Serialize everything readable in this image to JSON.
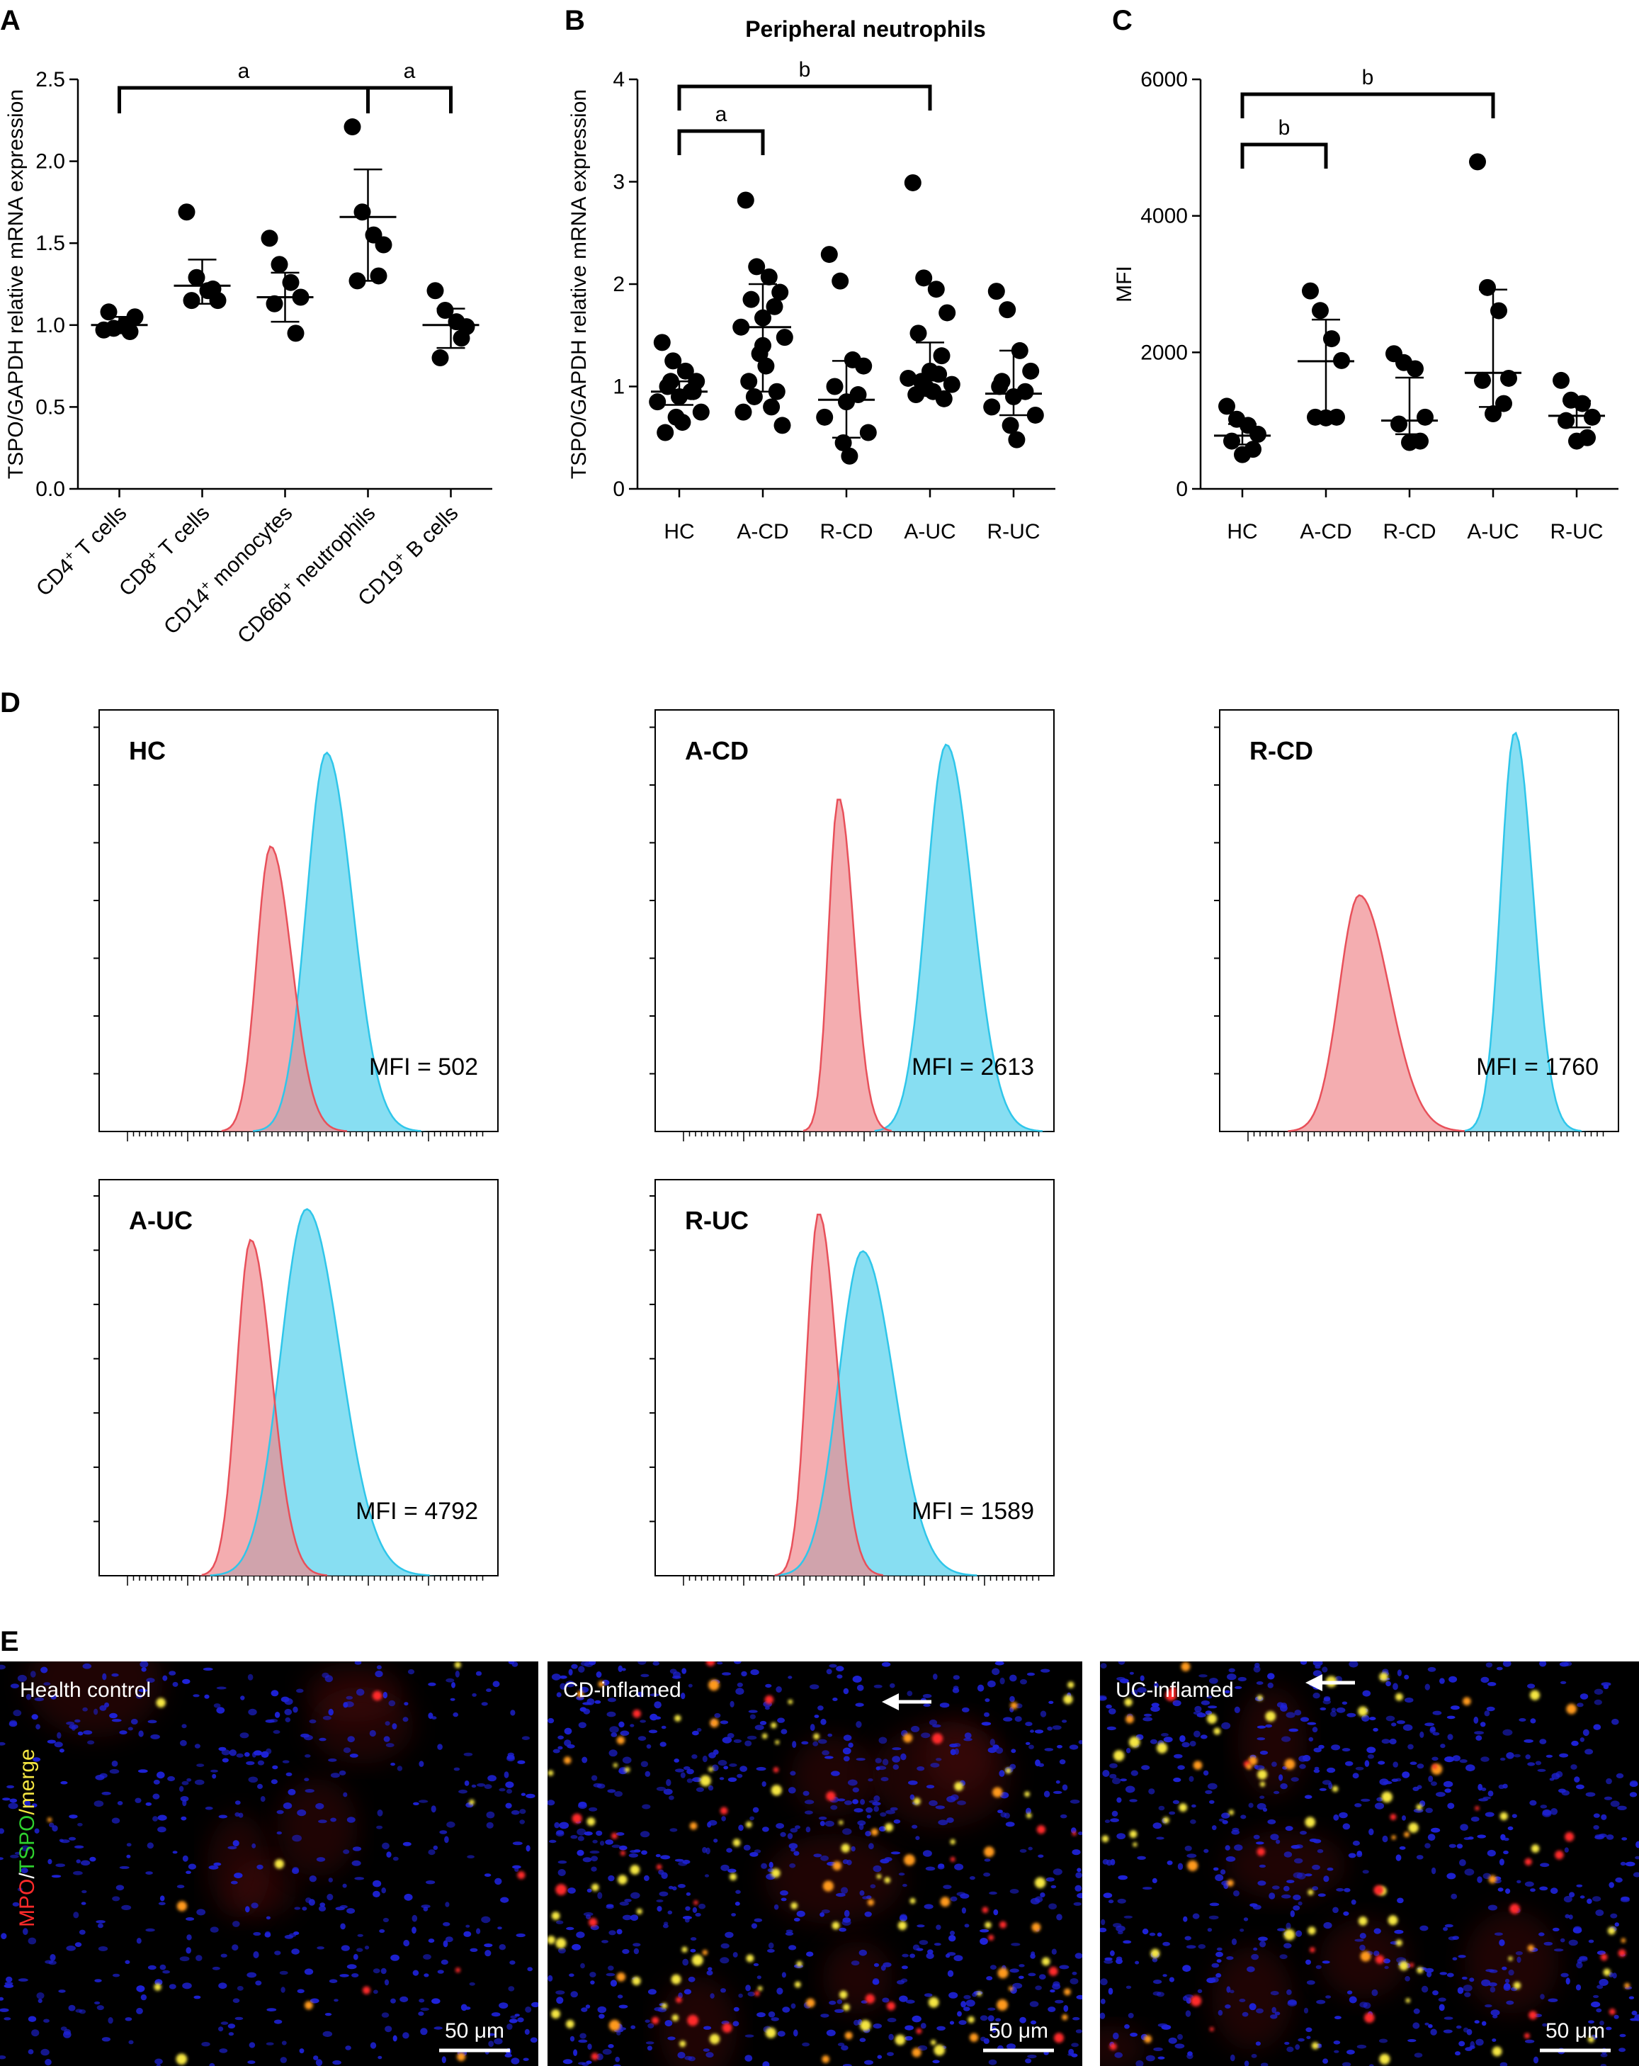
{
  "panels": {
    "A": "A",
    "B": "B",
    "C": "C",
    "D": "D",
    "E": "E"
  },
  "chart_data": [
    {
      "type": "scatter",
      "panel": "A",
      "title": "",
      "ylabel": "TSPO/GAPDH relative mRNA expression",
      "ylim": [
        0,
        2.5
      ],
      "yticks": [
        "0.0",
        "0.5",
        "1.0",
        "1.5",
        "2.0",
        "2.5"
      ],
      "categories": [
        "CD4⁺ T cells",
        "CD8⁺ T cells",
        "CD14⁺ monocytes",
        "CD66b⁺ neutrophils",
        "CD19⁺ B cells"
      ],
      "points": [
        [
          0.97,
          0.98,
          1.0,
          1.05,
          1.08,
          0.96
        ],
        [
          1.69,
          1.29,
          1.21,
          1.15,
          1.15,
          1.22
        ],
        [
          1.53,
          1.37,
          1.26,
          1.17,
          1.13,
          0.95
        ],
        [
          2.21,
          1.69,
          1.55,
          1.49,
          1.27,
          1.3
        ],
        [
          1.21,
          1.09,
          1.02,
          0.99,
          0.8,
          0.92
        ]
      ],
      "mean": [
        1.0,
        1.24,
        1.17,
        1.66,
        1.0
      ],
      "err_low": [
        0.95,
        1.13,
        1.02,
        1.27,
        0.86
      ],
      "err_high": [
        1.05,
        1.4,
        1.32,
        1.95,
        1.1
      ],
      "brackets": [
        {
          "from": 0,
          "to": 3,
          "label": "a"
        },
        {
          "from": 3,
          "to": 4,
          "label": "a"
        }
      ]
    },
    {
      "type": "scatter",
      "panel": "B",
      "title": "Peripheral neutrophils",
      "ylabel": "TSPO/GAPDH relative mRNA expression",
      "ylim": [
        0,
        4
      ],
      "yticks": [
        "0",
        "1",
        "2",
        "3",
        "4"
      ],
      "categories": [
        "HC",
        "A-CD",
        "R-CD",
        "A-UC",
        "R-UC"
      ],
      "points": [
        [
          1.43,
          1.25,
          1.15,
          1.05,
          1.0,
          0.95,
          0.9,
          0.85,
          0.75,
          0.7,
          0.65,
          0.55,
          0.95,
          1.05
        ],
        [
          2.82,
          2.17,
          2.07,
          1.92,
          1.85,
          1.78,
          1.67,
          1.58,
          1.48,
          1.32,
          1.2,
          1.05,
          0.95,
          0.9,
          0.8,
          0.75,
          0.62,
          1.4
        ],
        [
          2.29,
          2.03,
          1.26,
          1.2,
          1.0,
          0.92,
          0.85,
          0.7,
          0.55,
          0.45,
          0.32
        ],
        [
          2.99,
          2.06,
          1.95,
          1.72,
          1.52,
          1.3,
          1.15,
          1.08,
          1.02,
          0.98,
          0.95,
          0.92,
          0.88,
          1.05,
          1.12
        ],
        [
          1.93,
          1.75,
          1.35,
          1.15,
          1.05,
          0.95,
          0.9,
          0.8,
          0.72,
          0.62,
          0.48,
          1.0
        ]
      ],
      "mean": [
        0.95,
        1.58,
        0.87,
        1.06,
        0.93
      ],
      "err_low": [
        0.82,
        0.95,
        0.5,
        0.95,
        0.72
      ],
      "err_high": [
        1.05,
        2.0,
        1.25,
        1.43,
        1.35
      ],
      "brackets": [
        {
          "from": 0,
          "to": 1,
          "label": "a"
        },
        {
          "from": 0,
          "to": 3,
          "label": "b"
        }
      ]
    },
    {
      "type": "scatter",
      "panel": "C",
      "title": "",
      "ylabel": "MFI",
      "ylim": [
        0,
        6000
      ],
      "yticks": [
        "0",
        "2000",
        "4000",
        "6000"
      ],
      "categories": [
        "HC",
        "A-CD",
        "R-CD",
        "A-UC",
        "R-UC"
      ],
      "points": [
        [
          1210,
          1020,
          930,
          800,
          700,
          580,
          502
        ],
        [
          2900,
          2613,
          2200,
          1880,
          1050,
          1050,
          1040
        ],
        [
          1980,
          1850,
          1760,
          1050,
          950,
          700,
          680
        ],
        [
          4792,
          2950,
          2610,
          1620,
          1589,
          1250,
          1100
        ],
        [
          1589,
          1300,
          1250,
          1050,
          1000,
          750,
          700
        ]
      ],
      "mean": [
        780,
        1870,
        1000,
        1700,
        1070
      ],
      "err_low": [
        650,
        1100,
        800,
        1200,
        900
      ],
      "err_high": [
        950,
        2480,
        1630,
        2920,
        1290
      ],
      "brackets": [
        {
          "from": 0,
          "to": 1,
          "label": "b"
        },
        {
          "from": 0,
          "to": 3,
          "label": "b"
        }
      ]
    },
    {
      "type": "area",
      "panel": "D",
      "note": "flow cytometry histograms, isotype (red) vs TSPO (blue)",
      "histograms": [
        {
          "label": "HC",
          "mfi_label": "MFI = 502",
          "red_peak_rel": 0.7,
          "blue_peak_rel": 0.93
        },
        {
          "label": "A-CD",
          "mfi_label": "MFI = 2613",
          "red_peak_rel": 0.82,
          "blue_peak_rel": 0.95
        },
        {
          "label": "R-CD",
          "mfi_label": "MFI = 1760",
          "red_peak_rel": 0.58,
          "blue_peak_rel": 0.98
        },
        {
          "label": "A-UC",
          "mfi_label": "MFI = 4792",
          "red_peak_rel": 0.88,
          "blue_peak_rel": 0.96
        },
        {
          "label": "R-UC",
          "mfi_label": "MFI = 1589",
          "red_peak_rel": 0.95,
          "blue_peak_rel": 0.85
        }
      ]
    }
  ],
  "images": [
    {
      "label": "Health control",
      "scale": "50 μm",
      "arrow": false
    },
    {
      "label": "CD-inflamed",
      "scale": "50 μm",
      "arrow": true
    },
    {
      "label": "UC-inflamed",
      "scale": "50 μm",
      "arrow": true
    }
  ],
  "stain_label": {
    "mpo": "MPO",
    "sep1": "/",
    "tspo": "TSPO",
    "sep2": "/merge"
  },
  "colors": {
    "red_hist": "#f08a8f",
    "blue_hist": "#5fd3ee",
    "red_line": "#e8505a",
    "blue_line": "#2fc6ea",
    "mpo": "#ff2a2a",
    "tspo": "#2ed12e",
    "merge": "#f5e642",
    "nuclei": "#1e22d8"
  }
}
